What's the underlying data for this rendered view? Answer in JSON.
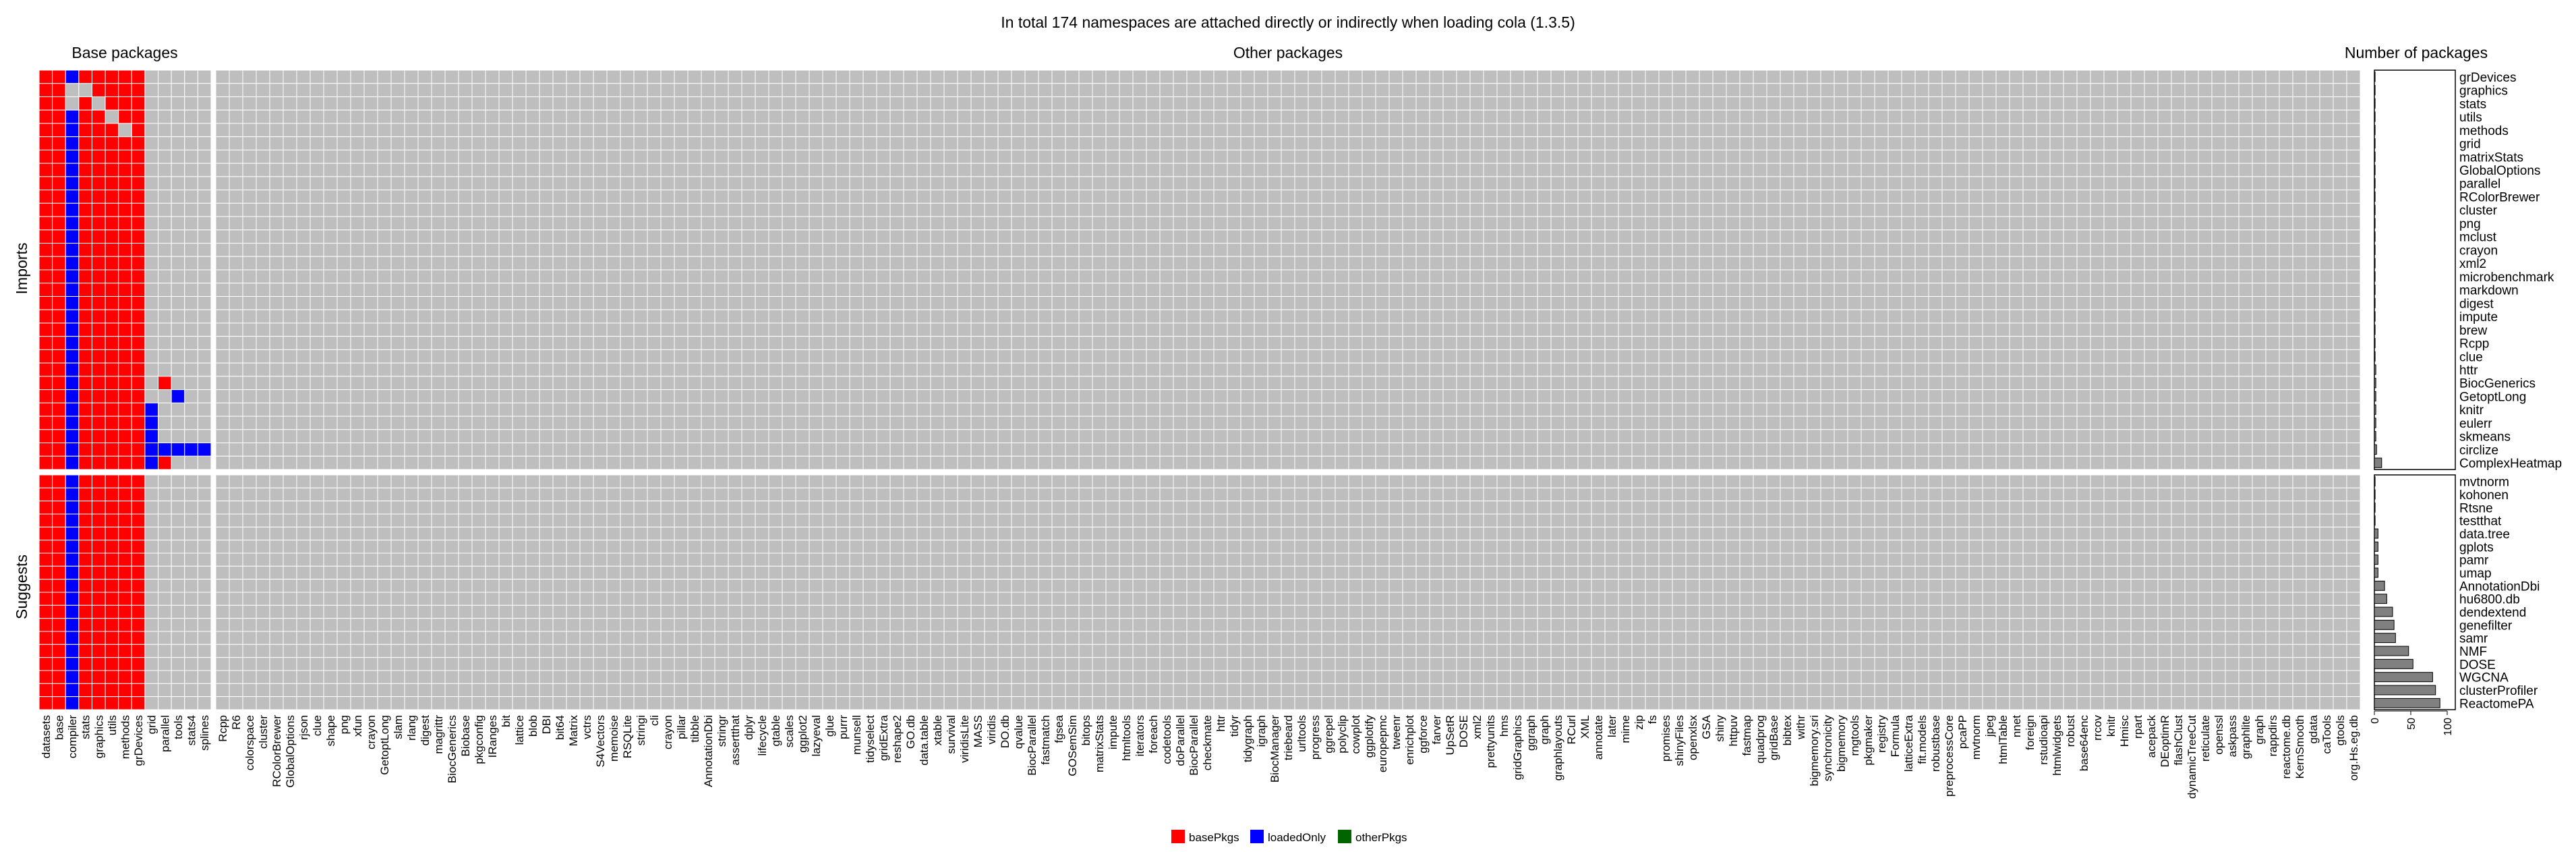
{
  "chart_data": {
    "type": "heatmap",
    "title": "In total 174 namespaces are attached directly or indirectly when loading cola (1.3.5)",
    "column_group_titles": {
      "base": "Base packages",
      "other": "Other packages"
    },
    "row_group_titles": {
      "imports": "Imports",
      "suggests": "Suggests"
    },
    "barplot_title": "Number of packages",
    "barplot_axis_ticks": [
      "0",
      "50",
      "100"
    ],
    "barplot_xlim": [
      0,
      100
    ],
    "legend": [
      {
        "key": "basePkgs",
        "label": "basePkgs",
        "color": "#ff0000"
      },
      {
        "key": "loadedOnly",
        "label": "loadedOnly",
        "color": "#0000ff"
      },
      {
        "key": "otherPkgs",
        "label": "otherPkgs",
        "color": "#006400"
      }
    ],
    "cell_background_color": "#bebebe",
    "rows_imports": [
      "grDevices",
      "graphics",
      "stats",
      "utils",
      "methods",
      "grid",
      "matrixStats",
      "GlobalOptions",
      "parallel",
      "RColorBrewer",
      "cluster",
      "png",
      "mclust",
      "crayon",
      "xml2",
      "microbenchmark",
      "markdown",
      "digest",
      "impute",
      "brew",
      "Rcpp",
      "clue",
      "httr",
      "BiocGenerics",
      "GetoptLong",
      "knitr",
      "eulerr",
      "skmeans",
      "circlize",
      "ComplexHeatmap"
    ],
    "rows_suggests": [
      "mvtnorm",
      "kohonen",
      "Rtsne",
      "testthat",
      "data.tree",
      "gplots",
      "pamr",
      "umap",
      "AnnotationDbi",
      "hu6800.db",
      "dendextend",
      "genefilter",
      "samr",
      "NMF",
      "DOSE",
      "WGCNA",
      "clusterProfiler",
      "ReactomePA"
    ],
    "columns_base": [
      "datasets",
      "base",
      "compiler",
      "stats",
      "graphics",
      "utils",
      "methods",
      "grDevices",
      "grid",
      "parallel",
      "tools",
      "stats4",
      "splines"
    ],
    "columns_other": [
      "Rcpp",
      "R6",
      "colorspace",
      "cluster",
      "RColorBrewer",
      "GlobalOptions",
      "rjson",
      "clue",
      "shape",
      "png",
      "xfun",
      "crayon",
      "GetoptLong",
      "slam",
      "rlang",
      "digest",
      "magrittr",
      "BiocGenerics",
      "Biobase",
      "pkgconfig",
      "IRanges",
      "bit",
      "lattice",
      "blob",
      "DBI",
      "bit64",
      "Matrix",
      "vctrs",
      "S4Vectors",
      "memoise",
      "RSQLite",
      "stringi",
      "cli",
      "crayon",
      "pillar",
      "tibble",
      "AnnotationDbi",
      "stringr",
      "assertthat",
      "dplyr",
      "lifecycle",
      "gtable",
      "scales",
      "ggplot2",
      "lazyeval",
      "glue",
      "purrr",
      "munsell",
      "tidyselect",
      "gridExtra",
      "reshape2",
      "GO.db",
      "data.table",
      "xtable",
      "survival",
      "viridisLite",
      "MASS",
      "viridis",
      "DO.db",
      "qvalue",
      "BiocParallel",
      "fastmatch",
      "fgsea",
      "GOSemSim",
      "bitops",
      "matrixStats",
      "impute",
      "htmltools",
      "iterators",
      "foreach",
      "codetools",
      "doParallel",
      "BiocParallel",
      "checkmate",
      "httr",
      "tidyr",
      "tidygraph",
      "igraph",
      "BiocManager",
      "triebeard",
      "urltools",
      "progress",
      "ggrepel",
      "polyclip",
      "cowplot",
      "ggplotify",
      "europepmc",
      "tweenr",
      "enrichplot",
      "ggforce",
      "farver",
      "UpSetR",
      "DOSE",
      "xml2",
      "prettyunits",
      "hms",
      "gridGraphics",
      "ggraph",
      "graph",
      "graphlayouts",
      "RCurl",
      "XML",
      "annotate",
      "later",
      "mime",
      "zip",
      "fs",
      "promises",
      "shinyFiles",
      "openxlsx",
      "GSA",
      "shiny",
      "httpuv",
      "fastmap",
      "quadprog",
      "gridBase",
      "bibtex",
      "withr",
      "bigmemory.sri",
      "synchronicity",
      "bigmemory",
      "rngtools",
      "pkgmaker",
      "registry",
      "Formula",
      "latticeExtra",
      "fit.models",
      "robustbase",
      "preprocessCore",
      "pcaPP",
      "mvtnorm",
      "jpeg",
      "htmlTable",
      "nnet",
      "foreign",
      "rstudioapi",
      "htmlwidgets",
      "robust",
      "base64enc",
      "rrcov",
      "knitr",
      "Hmisc",
      "rpart",
      "acepack",
      "DEoptimR",
      "flashClust",
      "dynamicTreeCut",
      "reticulate",
      "openssl",
      "askpass",
      "graphlite",
      "graph",
      "rappdirs",
      "reactome.db",
      "KernSmooth",
      "gdata",
      "caTools",
      "gtools",
      "org.Hs.eg.db"
    ],
    "bar_values": [
      1,
      1,
      1,
      1,
      1,
      1,
      1,
      1,
      1,
      1,
      1,
      1,
      1,
      1,
      1,
      1,
      1,
      1,
      1,
      1,
      1,
      1,
      2,
      2,
      2,
      2,
      2,
      2,
      3,
      10,
      1,
      1,
      1,
      1,
      5,
      5,
      5,
      5,
      14,
      17,
      25,
      27,
      29,
      47,
      53,
      80,
      84,
      90
    ],
    "base_cells": {
      "rows_all_red_cols": [
        0,
        1,
        3,
        4,
        5,
        6,
        7
      ],
      "compiler_col": 2,
      "gray_exceptions": [
        [
          1,
          3
        ],
        [
          2,
          4
        ],
        [
          3,
          5
        ],
        [
          4,
          6
        ],
        [
          1,
          2
        ],
        [
          2,
          2
        ]
      ]
    },
    "blue_regions": [
      {
        "rows": [
          23,
          23
        ],
        "cols": [
          9,
          9
        ],
        "color": "basePkgs"
      },
      {
        "rows": [
          24,
          24
        ],
        "cols": [
          10,
          10
        ],
        "color": "loadedOnly"
      },
      {
        "rows": [
          25,
          25
        ],
        "cols": [
          8,
          8
        ],
        "color": "loadedOnly"
      },
      {
        "rows": [
          26,
          26
        ],
        "cols": [
          8,
          8
        ],
        "color": "loadedOnly"
      },
      {
        "rows": [
          27,
          29
        ],
        "cols": [
          8,
          8
        ],
        "color": "loadedOnly"
      },
      {
        "rows": [
          29,
          29
        ],
        "cols": [
          9,
          9
        ],
        "color": "basePkgs"
      },
      {
        "rows": [
          28,
          28
        ],
        "cols": [
          9,
          12
        ],
        "color": "loadedOnly"
      }
    ]
  }
}
